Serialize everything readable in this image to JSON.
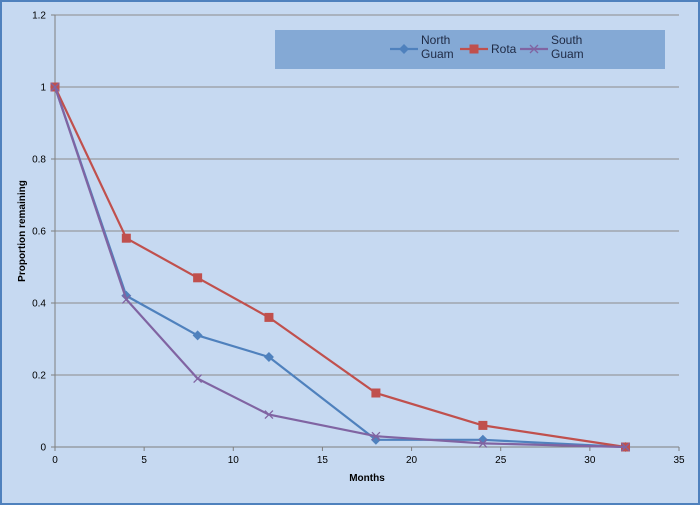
{
  "chart_data": {
    "type": "line",
    "title": "",
    "xlabel": "Months",
    "ylabel": "Proportion remaining",
    "xlim": [
      0,
      35
    ],
    "ylim": [
      0,
      1.2
    ],
    "xticks": [
      "0",
      "5",
      "10",
      "15",
      "20",
      "25",
      "30",
      "35"
    ],
    "yticks": [
      "0",
      "0.2",
      "0.4",
      "0.6",
      "0.8",
      "1",
      "1.2"
    ],
    "grid": true,
    "legend_position": "top-right",
    "series": [
      {
        "name": "North Guam",
        "name_lines": [
          "North",
          "Guam"
        ],
        "color": "#4f81bd",
        "marker": "diamond",
        "x": [
          0,
          4,
          8,
          12,
          18,
          24,
          32
        ],
        "y": [
          1.0,
          0.42,
          0.31,
          0.25,
          0.02,
          0.02,
          0.0
        ]
      },
      {
        "name": "Rota",
        "name_lines": [
          "Rota"
        ],
        "color": "#c0504d",
        "marker": "square",
        "x": [
          0,
          4,
          8,
          12,
          18,
          24,
          32
        ],
        "y": [
          1.0,
          0.58,
          0.47,
          0.36,
          0.15,
          0.06,
          0.0
        ]
      },
      {
        "name": "South Guam",
        "name_lines": [
          "South",
          "Guam"
        ],
        "color": "#8064a2",
        "marker": "x",
        "x": [
          0,
          4,
          8,
          12,
          18,
          24,
          32
        ],
        "y": [
          1.0,
          0.41,
          0.19,
          0.09,
          0.03,
          0.01,
          0.0
        ]
      }
    ]
  }
}
